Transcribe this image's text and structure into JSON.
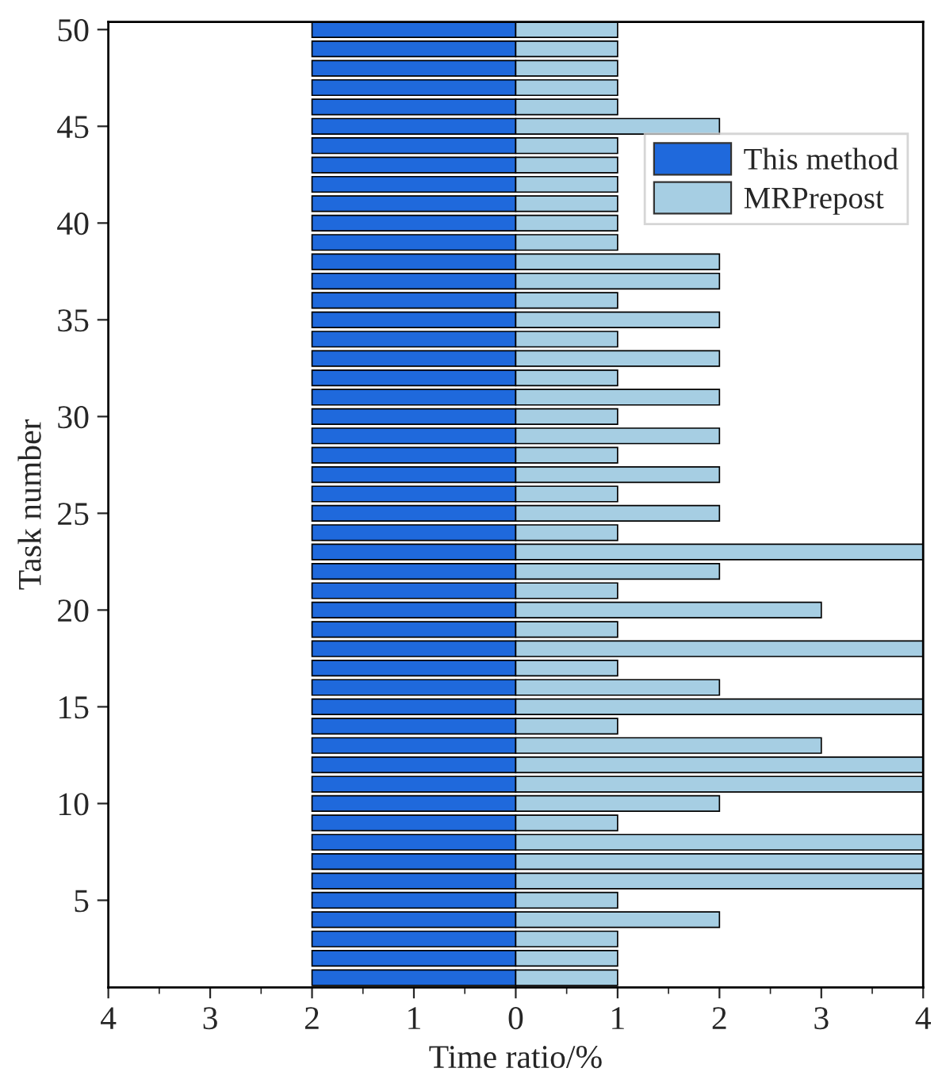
{
  "chart_data": {
    "type": "bar",
    "orientation": "horizontal",
    "xlabel": "Time ratio/%",
    "ylabel": "Task number",
    "x": [
      1,
      2,
      3,
      4,
      5,
      6,
      7,
      8,
      9,
      10,
      11,
      12,
      13,
      14,
      15,
      16,
      17,
      18,
      19,
      20,
      21,
      22,
      23,
      24,
      25,
      26,
      27,
      28,
      29,
      30,
      31,
      32,
      33,
      34,
      35,
      36,
      37,
      38,
      39,
      40,
      41,
      42,
      43,
      44,
      45,
      46,
      47,
      48,
      49,
      50
    ],
    "series": [
      {
        "name": "This method",
        "color": "#1f69dc",
        "values": [
          -2,
          -2,
          -2,
          -2,
          -2,
          -2,
          -2,
          -2,
          -2,
          -2,
          -2,
          -2,
          -2,
          -2,
          -2,
          -2,
          -2,
          -2,
          -2,
          -2,
          -2,
          -2,
          -2,
          -2,
          -2,
          -2,
          -2,
          -2,
          -2,
          -2,
          -2,
          -2,
          -2,
          -2,
          -2,
          -2,
          -2,
          -2,
          -2,
          -2,
          -2,
          -2,
          -2,
          -2,
          -2,
          -2,
          -2,
          -2,
          -2,
          -2
        ]
      },
      {
        "name": "MRPrepost",
        "color": "#a6cee3",
        "values": [
          1,
          1,
          1,
          2,
          1,
          4,
          4,
          4,
          1,
          2,
          4,
          4,
          3,
          1,
          4,
          2,
          1,
          4,
          1,
          3,
          1,
          2,
          4,
          1,
          2,
          1,
          2,
          1,
          2,
          1,
          2,
          1,
          2,
          1,
          2,
          1,
          2,
          2,
          1,
          1,
          1,
          1,
          1,
          1,
          2,
          1,
          1,
          1,
          1,
          1
        ]
      }
    ],
    "xlim": [
      -4,
      4
    ],
    "xticks": [
      {
        "value": -4,
        "label": "4"
      },
      {
        "value": -3,
        "label": "3"
      },
      {
        "value": -2,
        "label": "2"
      },
      {
        "value": -1,
        "label": "1"
      },
      0,
      1,
      2,
      3,
      4
    ],
    "ylim": [
      0.5,
      50.4
    ],
    "yticks": [
      5,
      10,
      15,
      20,
      25,
      30,
      35,
      40,
      45,
      50
    ],
    "stacked": true,
    "legend": "upper right",
    "grid": false
  }
}
